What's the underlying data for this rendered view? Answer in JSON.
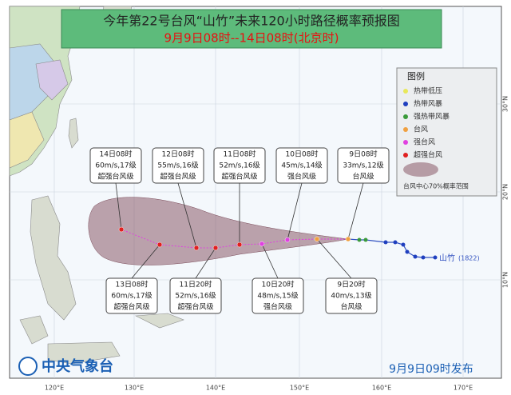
{
  "header": {
    "title": "今年第22号台风“山竹”未来120小时路径概率预报图",
    "subtitle": "9月9日08时--14日08时(北京时)"
  },
  "legend": {
    "title": "图例",
    "items": [
      {
        "label": "热带低压",
        "color": "#e8e85a"
      },
      {
        "label": "热带风暴",
        "color": "#1f3fbf"
      },
      {
        "label": "强热带风暴",
        "color": "#3a9a3a"
      },
      {
        "label": "台风",
        "color": "#f0a040"
      },
      {
        "label": "强台风",
        "color": "#e040e0"
      },
      {
        "label": "超强台风",
        "color": "#e02020"
      }
    ],
    "cone_label": "台风中心70%概率范围"
  },
  "forecasts": [
    {
      "time": "14日08时",
      "wind": "60m/s,17级",
      "level": "超强台风级"
    },
    {
      "time": "12日08时",
      "wind": "55m/s,16级",
      "level": "超强台风级"
    },
    {
      "time": "11日08时",
      "wind": "52m/s,16级",
      "level": "超强台风级"
    },
    {
      "time": "10日08时",
      "wind": "45m/s,14级",
      "level": "强台风级"
    },
    {
      "time": "9日08时",
      "wind": "33m/s,12级",
      "level": "台风级"
    },
    {
      "time": "13日08时",
      "wind": "60m/s,17级",
      "level": "超强台风级"
    },
    {
      "time": "11日20时",
      "wind": "52m/s,16级",
      "level": "超强台风级"
    },
    {
      "time": "10日20时",
      "wind": "48m/s,15级",
      "level": "强台风级"
    },
    {
      "time": "9日20时",
      "wind": "40m/s,13级",
      "level": "台风级"
    }
  ],
  "typhoon": {
    "name": "山竹",
    "code": "(1822)"
  },
  "axes": {
    "longitudes": [
      "120°E",
      "130°E",
      "140°E",
      "150°E",
      "160°E",
      "170°E"
    ],
    "latitudes": [
      "30°N",
      "20°N",
      "10°N"
    ]
  },
  "footer": {
    "agency": "中央气象台",
    "issued": "9月9日09时发布"
  }
}
